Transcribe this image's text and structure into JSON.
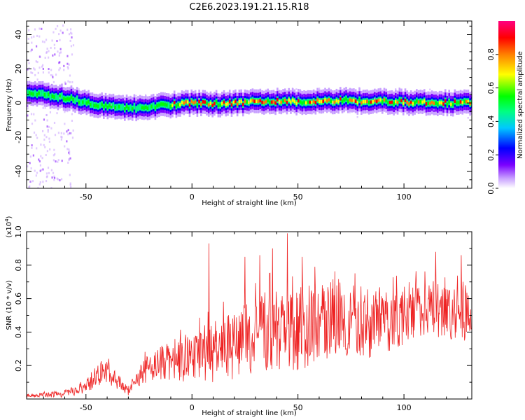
{
  "title": "C2E6.2023.191.21.15.R18",
  "chart_data": [
    {
      "type": "heatmap",
      "xlabel": "Height of straight line (km)",
      "ylabel": "Frequency (Hz)",
      "xlim": [
        -78,
        132
      ],
      "ylim": [
        -50,
        48
      ],
      "x_ticks": [
        -50,
        0,
        50,
        100
      ],
      "y_ticks": [
        -40,
        -20,
        0,
        20,
        40
      ],
      "x_tick_labels": [
        "-50",
        "0",
        "50",
        "100"
      ],
      "y_tick_labels": [
        "-40",
        "-20",
        "0",
        "20",
        "40"
      ],
      "grid": false,
      "colorbar": {
        "label": "Normalized spectral amplitude",
        "range": [
          0,
          1
        ],
        "ticks": [
          0.0,
          0.2,
          0.4,
          0.6,
          0.8
        ],
        "tick_labels": [
          "0.0",
          "0.2",
          "0.4",
          "0.6",
          "0.8"
        ],
        "colors": [
          "#ffffff",
          "#7a00ff",
          "#0000ff",
          "#00c8ff",
          "#00ff80",
          "#00ff00",
          "#ffff00",
          "#ff8000",
          "#ff0000",
          "#ff0080"
        ]
      },
      "ridge_center": {
        "x": [
          -78,
          -70,
          -60,
          -50,
          -40,
          -30,
          -20,
          -10,
          0,
          10,
          20,
          30,
          40,
          50,
          60,
          70,
          80,
          90,
          100,
          110,
          120,
          132
        ],
        "y": [
          6,
          5,
          3,
          0,
          -2,
          -3,
          -2,
          -1,
          0,
          -0.5,
          0,
          0.5,
          1,
          0.5,
          1,
          1.5,
          1,
          1,
          0.5,
          0,
          0,
          0
        ]
      }
    },
    {
      "type": "line",
      "xlabel": "Height of straight line (km)",
      "ylabel": "SNR (10 * v/v)",
      "y_multiplier_label": "(x10",
      "y_multiplier_exp": "4",
      "y_multiplier_close": ")",
      "xlim": [
        -78,
        132
      ],
      "ylim": [
        0,
        1.0
      ],
      "x_ticks": [
        -50,
        0,
        50,
        100
      ],
      "y_ticks": [
        0.2,
        0.4,
        0.6,
        0.8,
        1.0
      ],
      "x_tick_labels": [
        "-50",
        "0",
        "50",
        "100"
      ],
      "y_tick_labels": [
        "0.2",
        "0.4",
        "0.6",
        "0.8",
        "1.0"
      ],
      "line_color": "#ee2222",
      "grid": false,
      "envelope": {
        "x": [
          -78,
          -60,
          -50,
          -45,
          -40,
          -35,
          -30,
          -25,
          -20,
          -10,
          0,
          10,
          20,
          30,
          40,
          50,
          60,
          70,
          80,
          90,
          100,
          110,
          120,
          132
        ],
        "mean": [
          0.02,
          0.03,
          0.07,
          0.14,
          0.15,
          0.1,
          0.05,
          0.13,
          0.2,
          0.22,
          0.24,
          0.28,
          0.32,
          0.38,
          0.4,
          0.42,
          0.45,
          0.48,
          0.46,
          0.44,
          0.5,
          0.55,
          0.52,
          0.5
        ],
        "spread": [
          0.01,
          0.02,
          0.04,
          0.07,
          0.07,
          0.05,
          0.03,
          0.06,
          0.09,
          0.12,
          0.14,
          0.18,
          0.2,
          0.24,
          0.26,
          0.25,
          0.24,
          0.22,
          0.22,
          0.2,
          0.18,
          0.17,
          0.16,
          0.16
        ]
      },
      "peaks": [
        {
          "x": 8,
          "y": 0.93
        },
        {
          "x": 45,
          "y": 0.99
        },
        {
          "x": 25,
          "y": 0.85
        },
        {
          "x": 32,
          "y": 0.86
        },
        {
          "x": 38,
          "y": 0.9
        },
        {
          "x": 52,
          "y": 0.85
        },
        {
          "x": 115,
          "y": 0.88
        },
        {
          "x": 127,
          "y": 0.86
        }
      ]
    }
  ]
}
